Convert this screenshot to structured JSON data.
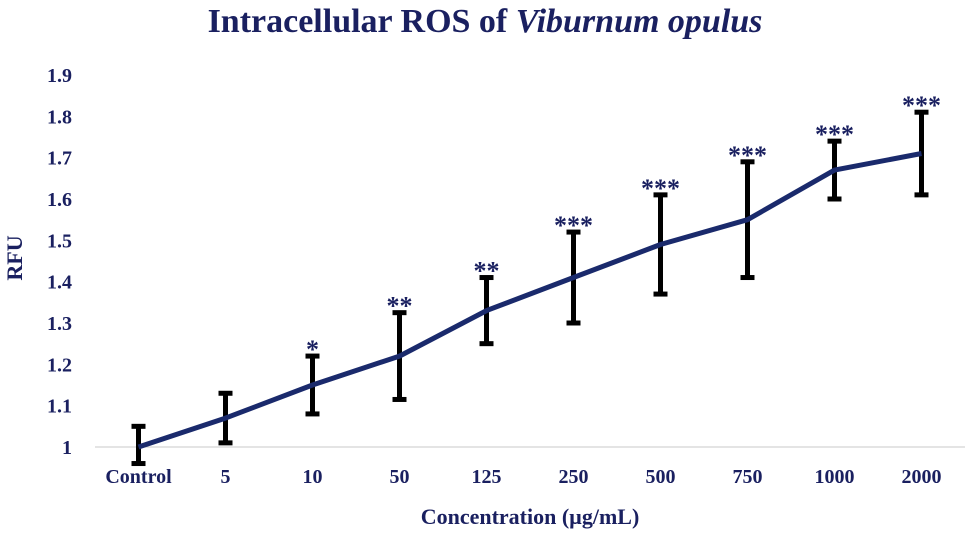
{
  "chart_data": {
    "type": "line",
    "title": "Intracellular ROS of ",
    "title_italic": "Viburnum opulus",
    "xlabel": "Concentration (µg/mL)",
    "ylabel": "RFU",
    "ylim": [
      1,
      1.9
    ],
    "yticks": [
      "1",
      "1.1",
      "1.2",
      "1.3",
      "1.4",
      "1.5",
      "1.6",
      "1.7",
      "1.8",
      "1.9"
    ],
    "categories": [
      "Control",
      "5",
      "10",
      "50",
      "125",
      "250",
      "500",
      "750",
      "1000",
      "2000"
    ],
    "series": [
      {
        "name": "RFU",
        "color": "#1a2a6c",
        "values": [
          1.0,
          1.07,
          1.15,
          1.22,
          1.33,
          1.41,
          1.49,
          1.55,
          1.67,
          1.71
        ],
        "err_low": [
          0.96,
          1.01,
          1.08,
          1.115,
          1.25,
          1.3,
          1.37,
          1.41,
          1.6,
          1.61
        ],
        "err_high": [
          1.05,
          1.13,
          1.22,
          1.325,
          1.41,
          1.52,
          1.61,
          1.69,
          1.74,
          1.81
        ]
      }
    ],
    "significance": [
      "",
      "",
      "*",
      "**",
      "**",
      "***",
      "***",
      "***",
      "***",
      "***"
    ],
    "colors": {
      "text": "#1a2060",
      "line": "#1a2a6c",
      "errorbar": "#000000",
      "axis": "#c8c8c8"
    }
  }
}
